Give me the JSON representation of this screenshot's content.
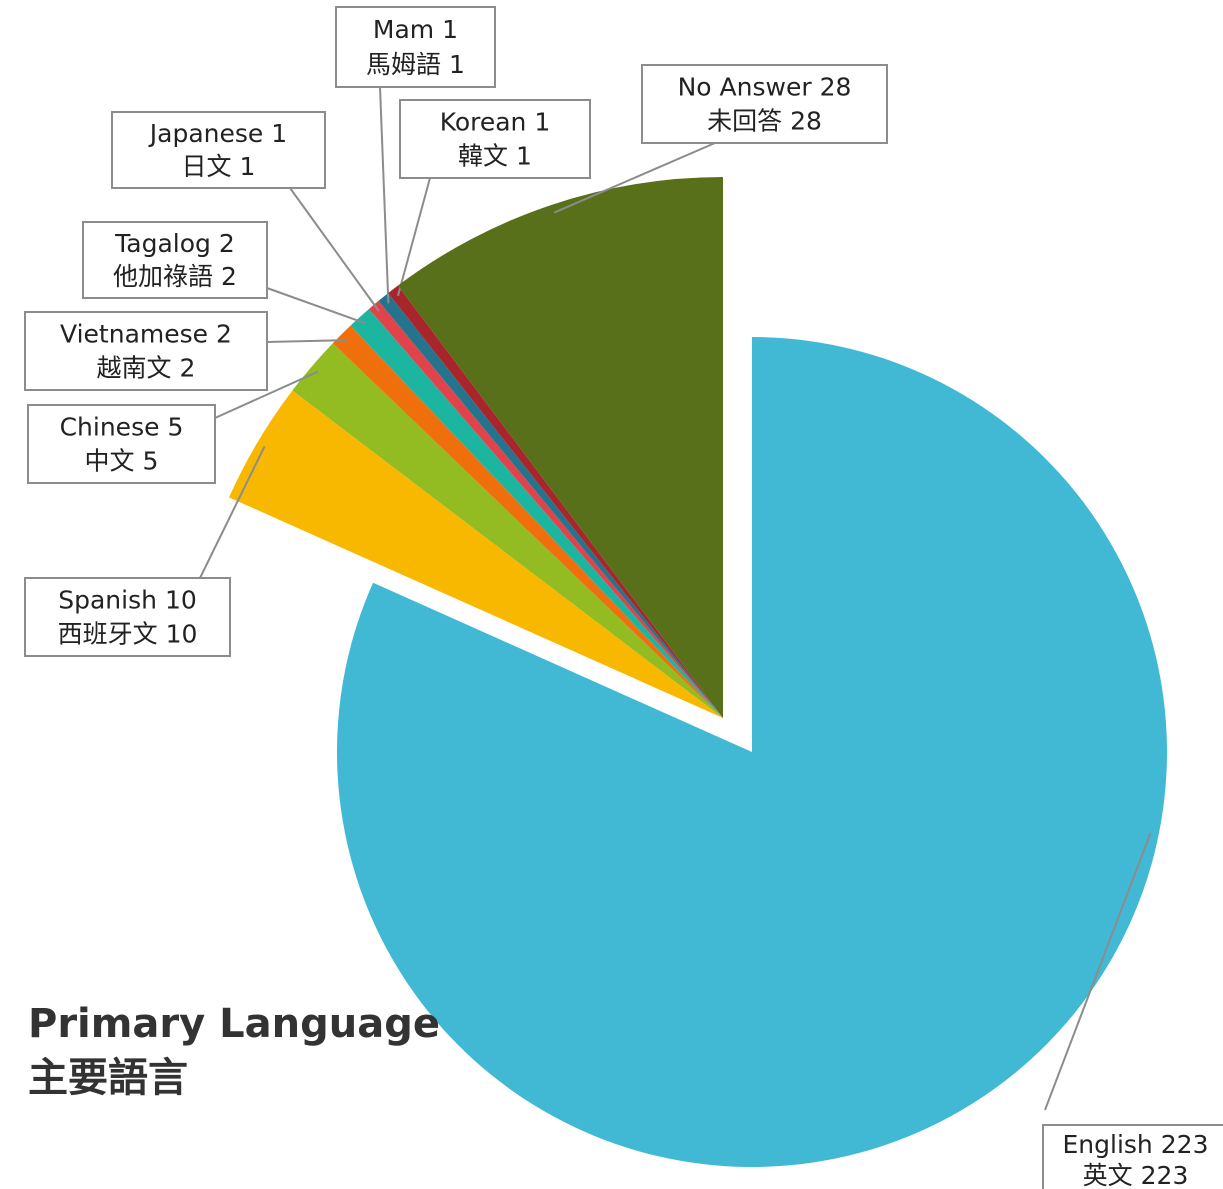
{
  "chart_data": {
    "type": "pie",
    "title": "Primary Language",
    "subtitle": "主要語言",
    "categories": [
      "English",
      "Spanish",
      "Chinese",
      "Vietnamese",
      "Tagalog",
      "Japanese",
      "Mam",
      "Korean",
      "No Answer"
    ],
    "categories_zh": [
      "英文",
      "西班牙文",
      "中文",
      "越南文",
      "他加祿語",
      "日文",
      "馬姆語",
      "韓文",
      "未回答"
    ],
    "values": [
      223,
      10,
      5,
      2,
      2,
      1,
      1,
      1,
      28
    ],
    "colors": [
      "#41b8d4",
      "#f9b800",
      "#93bb22",
      "#ef6f0d",
      "#1bb5a0",
      "#e0434a",
      "#23748c",
      "#a8252c",
      "#58701a"
    ],
    "exploded": [
      0
    ]
  }
}
